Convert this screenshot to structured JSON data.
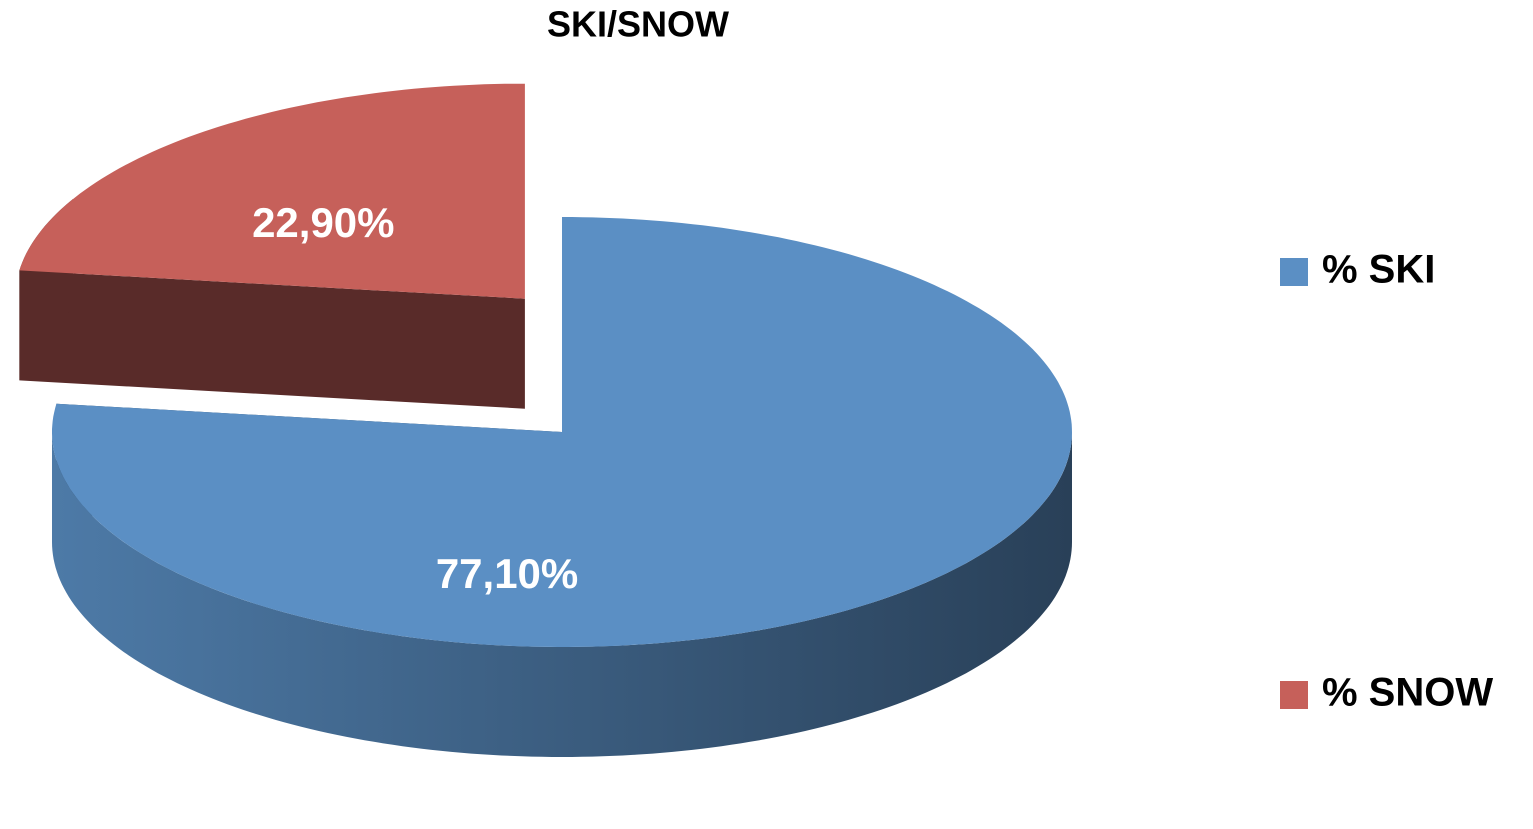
{
  "chart_data": {
    "type": "pie",
    "title": "SKI/SNOW",
    "categories": [
      "% SKI",
      "% SNOW"
    ],
    "values": [
      77.1,
      22.9
    ],
    "value_labels": [
      "77,10%",
      "22,90%"
    ],
    "colors": [
      "#5b8fc4",
      "#c6605a"
    ],
    "legend": "right"
  }
}
